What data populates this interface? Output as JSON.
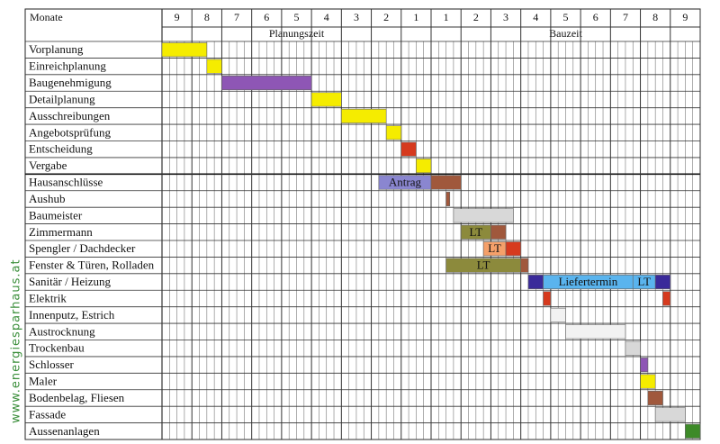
{
  "chart_data": {
    "type": "gantt",
    "corner_label": "Monate",
    "watermark": "www.energiesparhaus.at",
    "xlim": [
      0,
      18
    ],
    "xticks": [
      {
        "value": 0.5,
        "label": "9"
      },
      {
        "value": 1.5,
        "label": "8"
      },
      {
        "value": 2.5,
        "label": "7"
      },
      {
        "value": 3.5,
        "label": "6"
      },
      {
        "value": 4.5,
        "label": "5"
      },
      {
        "value": 5.5,
        "label": "4"
      },
      {
        "value": 6.5,
        "label": "3"
      },
      {
        "value": 7.5,
        "label": "2"
      },
      {
        "value": 8.5,
        "label": "1"
      },
      {
        "value": 9.5,
        "label": "1"
      },
      {
        "value": 10.5,
        "label": "2"
      },
      {
        "value": 11.5,
        "label": "3"
      },
      {
        "value": 12.5,
        "label": "4"
      },
      {
        "value": 13.5,
        "label": "5"
      },
      {
        "value": 14.5,
        "label": "6"
      },
      {
        "value": 15.5,
        "label": "7"
      },
      {
        "value": 16.5,
        "label": "8"
      },
      {
        "value": 17.5,
        "label": "9"
      }
    ],
    "phases": [
      {
        "label": "Planungszeit",
        "start": 0,
        "end": 9
      },
      {
        "label": "Bauzeit",
        "start": 9,
        "end": 18
      }
    ],
    "tasks": [
      {
        "name": "Vorplanung",
        "bars": [
          {
            "start": 0,
            "end": 1.5,
            "color": "#f5ec00"
          }
        ]
      },
      {
        "name": "Einreichplanung",
        "bars": [
          {
            "start": 1.5,
            "end": 2,
            "color": "#f5ec00"
          }
        ]
      },
      {
        "name": "Baugenehmigung",
        "bars": [
          {
            "start": 2,
            "end": 5,
            "color": "#8e56b5"
          }
        ]
      },
      {
        "name": "Detailplanung",
        "bars": [
          {
            "start": 5,
            "end": 6,
            "color": "#f5ec00"
          }
        ]
      },
      {
        "name": "Ausschreibungen",
        "bars": [
          {
            "start": 6,
            "end": 7.5,
            "color": "#f5ec00"
          }
        ]
      },
      {
        "name": "Angebotsprüfung",
        "bars": [
          {
            "start": 7.5,
            "end": 8,
            "color": "#f5ec00"
          }
        ]
      },
      {
        "name": "Entscheidung",
        "bars": [
          {
            "start": 8,
            "end": 8.5,
            "color": "#d63a1e"
          }
        ]
      },
      {
        "name": "Vergabe",
        "bars": [
          {
            "start": 8.5,
            "end": 9,
            "color": "#f5ec00"
          }
        ]
      },
      {
        "name": "Hausanschlüsse",
        "bars": [
          {
            "start": 7.25,
            "end": 9,
            "color": "#8a86d0",
            "label": "Antrag"
          },
          {
            "start": 9,
            "end": 10,
            "color": "#a0583c"
          }
        ]
      },
      {
        "name": "Aushub",
        "bars": [
          {
            "start": 9.5,
            "end": 9.625,
            "color": "#a0583c"
          }
        ]
      },
      {
        "name": "Baumeister",
        "bars": [
          {
            "start": 9.75,
            "end": 11.75,
            "color": "#d8d8d8"
          }
        ]
      },
      {
        "name": "Zimmermann",
        "bars": [
          {
            "start": 10,
            "end": 11,
            "color": "#8c8a3c",
            "label": "LT"
          },
          {
            "start": 11,
            "end": 11.5,
            "color": "#a0583c"
          }
        ]
      },
      {
        "name": "Spengler / Dachdecker",
        "bars": [
          {
            "start": 10.75,
            "end": 11.5,
            "color": "#f5a06a",
            "label": "LT"
          },
          {
            "start": 11.5,
            "end": 12,
            "color": "#d63a1e"
          }
        ]
      },
      {
        "name": "Fenster & Türen, Rolladen",
        "bars": [
          {
            "start": 9.5,
            "end": 12,
            "color": "#8c8a3c",
            "label": "LT"
          },
          {
            "start": 12,
            "end": 12.25,
            "color": "#a0583c"
          }
        ]
      },
      {
        "name": "Sanitär / Heizung",
        "bars": [
          {
            "start": 12.25,
            "end": 12.75,
            "color": "#3a2a9a"
          },
          {
            "start": 12.75,
            "end": 15.75,
            "color": "#5ab4ee",
            "label": "Liefertermin"
          },
          {
            "start": 15.75,
            "end": 16.5,
            "color": "#5ab4ee",
            "label": "LT"
          },
          {
            "start": 16.5,
            "end": 17,
            "color": "#3a2a9a"
          }
        ]
      },
      {
        "name": "Elektrik",
        "bars": [
          {
            "start": 12.75,
            "end": 13,
            "color": "#d63a1e"
          },
          {
            "start": 16.75,
            "end": 17,
            "color": "#d63a1e"
          }
        ]
      },
      {
        "name": "Innenputz, Estrich",
        "bars": [
          {
            "start": 13,
            "end": 13.5,
            "color": "#f2f2f2"
          }
        ]
      },
      {
        "name": "Austrocknung",
        "bars": [
          {
            "start": 13.5,
            "end": 15.5,
            "color": "#f2f2f2"
          }
        ]
      },
      {
        "name": "Trockenbau",
        "bars": [
          {
            "start": 15.5,
            "end": 16,
            "color": "#d8d8d8"
          }
        ]
      },
      {
        "name": "Schlosser",
        "bars": [
          {
            "start": 16,
            "end": 16.25,
            "color": "#8e56b5"
          }
        ]
      },
      {
        "name": "Maler",
        "bars": [
          {
            "start": 16,
            "end": 16.5,
            "color": "#f5ec00"
          }
        ]
      },
      {
        "name": "Bodenbelag, Fliesen",
        "bars": [
          {
            "start": 16.25,
            "end": 16.75,
            "color": "#a0583c"
          }
        ]
      },
      {
        "name": "Fassade",
        "bars": [
          {
            "start": 16.5,
            "end": 17.5,
            "color": "#d8d8d8"
          }
        ]
      },
      {
        "name": "Aussenanlagen",
        "bars": [
          {
            "start": 17.5,
            "end": 18,
            "color": "#3d8a28"
          }
        ]
      }
    ]
  }
}
